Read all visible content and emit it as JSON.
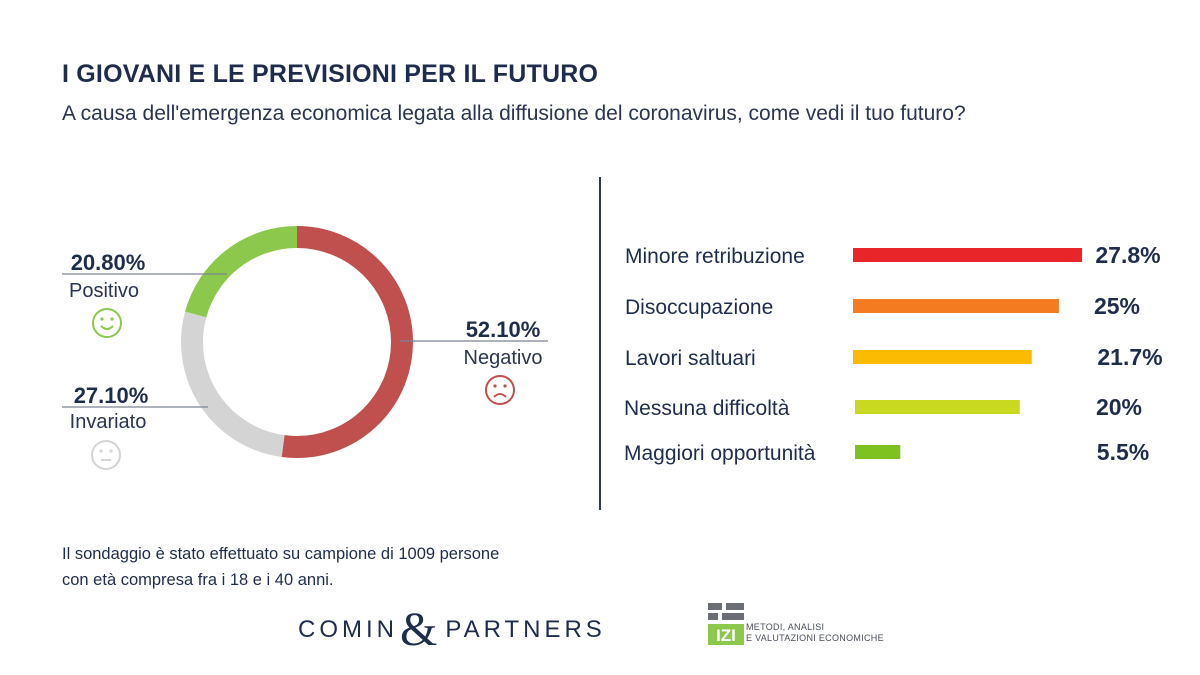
{
  "header": {
    "title": "I GIOVANI E LE PREVISIONI PER IL FUTURO",
    "subtitle": "A causa dell'emergenza economica legata alla diffusione del coronavirus, come vedi il tuo futuro?"
  },
  "chart_data": [
    {
      "type": "pie",
      "variant": "donut",
      "slices": [
        {
          "label": "Negativo",
          "value_text": "52.10%",
          "value": 52.1,
          "color": "#c0504d",
          "icon": "sad-face-icon"
        },
        {
          "label": "Invariato",
          "value_text": "27.10%",
          "value": 27.1,
          "color": "#d4d4d4",
          "icon": "neutral-face-icon"
        },
        {
          "label": "Positivo",
          "value_text": "20.80%",
          "value": 20.8,
          "color": "#8cc84b",
          "icon": "happy-face-icon"
        }
      ]
    },
    {
      "type": "bar",
      "orientation": "horizontal",
      "categories": [
        "Minore retribuzione",
        "Disoccupazione",
        "Lavori saltuari",
        "Nessuna difficoltà",
        "Maggiori opportunità"
      ],
      "values": [
        27.8,
        25,
        21.7,
        20,
        5.5
      ],
      "value_labels": [
        "27.8%",
        "25%",
        "21.7%",
        "20%",
        "5.5%"
      ],
      "colors": [
        "#e8262a",
        "#f47b20",
        "#fbbb00",
        "#c8d920",
        "#7dc21e"
      ]
    }
  ],
  "footer": {
    "note_line1": "Il sondaggio è stato effettuato su campione di 1009 persone",
    "note_line2": "con età compresa fra i 18 e i 40 anni.",
    "logo_comin_left": "COMIN",
    "logo_comin_amp": "&",
    "logo_comin_right": "PARTNERS",
    "logo_izi_line1": "METODI, ANALISI",
    "logo_izi_line2": "E VALUTAZIONI ECONOMICHE"
  }
}
